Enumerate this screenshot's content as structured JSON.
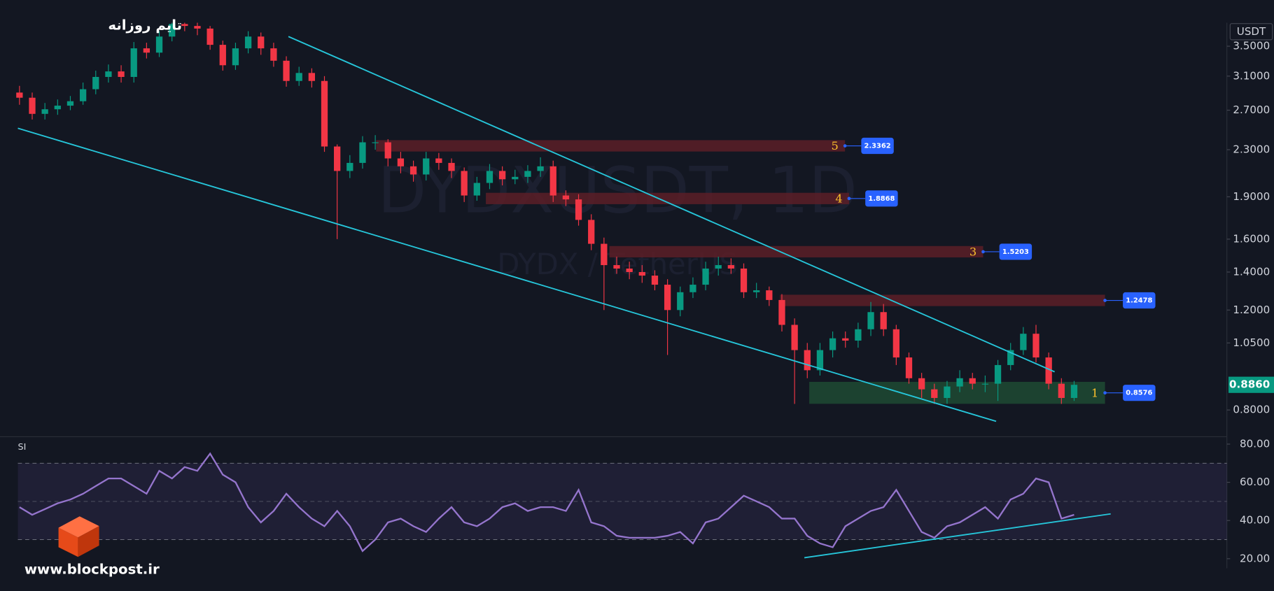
{
  "chart_data": {
    "type": "candlestick",
    "title": "تایم روزانه",
    "watermark": "DYDXUSDT, 1D",
    "watermark_sub": "DYDX / TetherUS",
    "currency": "USDT",
    "log_scale": true,
    "up_color": "#089981",
    "down_color": "#f23645",
    "open": [
      2.9,
      2.84,
      2.66,
      2.71,
      2.75,
      2.8,
      2.94,
      3.09,
      3.16,
      3.09,
      3.47,
      3.41,
      3.64,
      3.83,
      3.8,
      3.76,
      3.52,
      3.24,
      3.47,
      3.64,
      3.47,
      3.3,
      3.04,
      3.14,
      3.04,
      2.33,
      2.11,
      2.18,
      2.37,
      2.37,
      2.22,
      2.15,
      2.08,
      2.22,
      2.18,
      2.11,
      1.91,
      2.01,
      2.11,
      2.04,
      2.06,
      2.11,
      2.15,
      1.91,
      1.88,
      1.73,
      1.57,
      1.44,
      1.42,
      1.4,
      1.38,
      1.33,
      1.2,
      1.29,
      1.33,
      1.42,
      1.44,
      1.42,
      1.29,
      1.3,
      1.25,
      1.13,
      1.02,
      0.94,
      1.02,
      1.07,
      1.06,
      1.11,
      1.19,
      1.11,
      0.99,
      0.91,
      0.87,
      0.84,
      0.88,
      0.91,
      0.89,
      0.89,
      0.96,
      1.02,
      1.09,
      0.99,
      0.89,
      0.84
    ],
    "high": [
      2.98,
      2.9,
      2.78,
      2.82,
      2.86,
      3.02,
      3.17,
      3.25,
      3.24,
      3.56,
      3.55,
      3.72,
      3.85,
      3.85,
      3.85,
      3.8,
      3.58,
      3.55,
      3.72,
      3.7,
      3.55,
      3.36,
      3.22,
      3.2,
      3.1,
      2.35,
      2.25,
      2.43,
      2.44,
      2.4,
      2.28,
      2.2,
      2.28,
      2.27,
      2.22,
      2.14,
      2.06,
      2.17,
      2.15,
      2.12,
      2.16,
      2.23,
      2.2,
      1.95,
      1.92,
      1.77,
      1.61,
      1.49,
      1.46,
      1.44,
      1.41,
      1.36,
      1.32,
      1.37,
      1.46,
      1.49,
      1.48,
      1.45,
      1.34,
      1.32,
      1.28,
      1.16,
      1.05,
      1.05,
      1.1,
      1.1,
      1.14,
      1.24,
      1.23,
      1.13,
      1.01,
      0.93,
      0.89,
      0.9,
      0.94,
      0.93,
      0.92,
      0.98,
      1.05,
      1.12,
      1.13,
      1.01,
      0.91,
      0.9
    ],
    "low": [
      2.76,
      2.6,
      2.6,
      2.65,
      2.7,
      2.76,
      2.88,
      3.02,
      3.02,
      3.02,
      3.33,
      3.35,
      3.57,
      3.72,
      3.66,
      3.45,
      3.17,
      3.18,
      3.4,
      3.38,
      3.22,
      2.97,
      2.98,
      2.96,
      2.28,
      1.6,
      2.05,
      2.13,
      2.3,
      2.15,
      2.09,
      2.02,
      2.03,
      2.12,
      2.05,
      1.86,
      1.87,
      1.96,
      1.99,
      2.0,
      2.01,
      2.06,
      1.86,
      1.83,
      1.69,
      1.53,
      1.2,
      1.39,
      1.36,
      1.34,
      1.3,
      1.0,
      1.17,
      1.26,
      1.3,
      1.38,
      1.39,
      1.26,
      1.26,
      1.22,
      1.1,
      0.82,
      0.91,
      0.92,
      0.99,
      1.03,
      1.03,
      1.08,
      1.08,
      0.96,
      0.89,
      0.84,
      0.82,
      0.82,
      0.86,
      0.87,
      0.86,
      0.83,
      0.94,
      1.0,
      0.97,
      0.87,
      0.82,
      0.83
    ],
    "close": [
      2.84,
      2.66,
      2.71,
      2.75,
      2.8,
      2.94,
      3.09,
      3.16,
      3.09,
      3.47,
      3.41,
      3.64,
      3.83,
      3.8,
      3.76,
      3.52,
      3.24,
      3.47,
      3.64,
      3.47,
      3.3,
      3.04,
      3.14,
      3.04,
      2.33,
      2.11,
      2.18,
      2.37,
      2.37,
      2.22,
      2.15,
      2.08,
      2.22,
      2.18,
      2.11,
      1.91,
      2.01,
      2.11,
      2.04,
      2.06,
      2.11,
      2.15,
      1.91,
      1.88,
      1.73,
      1.57,
      1.44,
      1.42,
      1.4,
      1.38,
      1.33,
      1.2,
      1.29,
      1.33,
      1.42,
      1.44,
      1.42,
      1.29,
      1.3,
      1.25,
      1.13,
      1.02,
      0.94,
      1.02,
      1.07,
      1.06,
      1.11,
      1.19,
      1.11,
      0.99,
      0.91,
      0.87,
      0.84,
      0.88,
      0.91,
      0.89,
      0.89,
      0.96,
      1.02,
      1.09,
      0.99,
      0.89,
      0.84,
      0.886
    ],
    "ylim": [
      0.72,
      3.85
    ],
    "yticks": [
      {
        "value": 3.5,
        "label": "3.5000"
      },
      {
        "value": 3.1,
        "label": "3.1000"
      },
      {
        "value": 2.7,
        "label": "2.7000"
      },
      {
        "value": 2.3,
        "label": "2.3000"
      },
      {
        "value": 1.9,
        "label": "1.9000"
      },
      {
        "value": 1.6,
        "label": "1.6000"
      },
      {
        "value": 1.4,
        "label": "1.4000"
      },
      {
        "value": 1.2,
        "label": "1.2000"
      },
      {
        "value": 1.05,
        "label": "1.0500"
      },
      {
        "value": 0.8,
        "label": "0.8000"
      }
    ],
    "last_price": {
      "value": 0.886,
      "label": "0.8860",
      "color": "#089981"
    },
    "levels": [
      {
        "value": 2.3362,
        "label": "5",
        "color": "#5c1f27"
      },
      {
        "value": 1.8868,
        "label": "4",
        "color": "#5c1f27"
      },
      {
        "value": 1.5203,
        "label": "3",
        "color": "#5c1f27"
      },
      {
        "value": 1.2478,
        "color": "#5c1f27"
      },
      {
        "value": 0.8576,
        "label": "1",
        "color": "#1f4a33"
      }
    ],
    "rsi": {
      "label": "SI",
      "color": "#9575cd",
      "values": [
        47,
        43,
        46,
        49,
        51,
        54,
        58,
        62,
        62,
        58,
        54,
        66,
        62,
        68,
        66,
        75,
        64,
        60,
        47,
        39,
        45,
        54,
        47,
        41,
        37,
        45,
        37,
        24,
        30,
        39,
        41,
        37,
        34,
        41,
        47,
        39,
        37,
        41,
        47,
        49,
        45,
        47,
        47,
        45,
        56,
        39,
        37,
        32,
        31,
        31,
        31,
        32,
        34,
        28,
        39,
        41,
        47,
        53,
        50,
        47,
        41,
        41,
        32,
        28,
        26,
        37,
        41,
        45,
        47,
        56,
        45,
        34,
        31,
        37,
        39,
        43,
        47,
        41,
        51,
        54,
        62,
        60,
        41,
        43
      ],
      "ylim": [
        15,
        83
      ],
      "yticks": [
        {
          "value": 80,
          "label": "80.00"
        },
        {
          "value": 60,
          "label": "60.00"
        },
        {
          "value": 40,
          "label": "40.00"
        },
        {
          "value": 20,
          "label": "20.00"
        }
      ],
      "band": [
        30,
        70
      ],
      "mid": 50
    },
    "brand": "www.blockpost.ir"
  }
}
